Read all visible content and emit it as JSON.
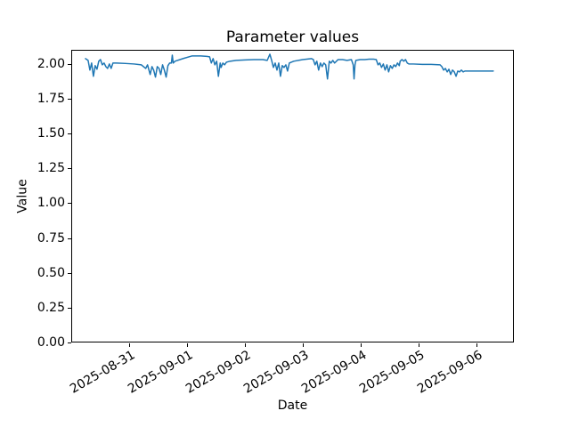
{
  "figure": {
    "background": "#ffffff",
    "frame_color": "#000000"
  },
  "chart_data": {
    "type": "line",
    "title": "Parameter values",
    "xlabel": "Date",
    "ylabel": "Value",
    "grid": false,
    "legend": "none",
    "line_color": "#1f77b4",
    "line_width": 1.5,
    "x_unit": "days since 2025-08-30 00:00",
    "xlim": [
      0,
      7.65
    ],
    "ylim": [
      0,
      2.102
    ],
    "x_ticks": [
      {
        "pos": 1,
        "label": "2025-08-31"
      },
      {
        "pos": 2,
        "label": "2025-09-01"
      },
      {
        "pos": 3,
        "label": "2025-09-02"
      },
      {
        "pos": 4,
        "label": "2025-09-03"
      },
      {
        "pos": 5,
        "label": "2025-09-04"
      },
      {
        "pos": 6,
        "label": "2025-09-05"
      },
      {
        "pos": 7,
        "label": "2025-09-06"
      }
    ],
    "y_ticks": [
      {
        "pos": 0.0,
        "label": "0.00"
      },
      {
        "pos": 0.25,
        "label": "0.25"
      },
      {
        "pos": 0.5,
        "label": "0.50"
      },
      {
        "pos": 0.75,
        "label": "0.75"
      },
      {
        "pos": 1.0,
        "label": "1.00"
      },
      {
        "pos": 1.25,
        "label": "1.25"
      },
      {
        "pos": 1.5,
        "label": "1.50"
      },
      {
        "pos": 1.75,
        "label": "1.75"
      },
      {
        "pos": 2.0,
        "label": "2.00"
      }
    ],
    "series": [
      {
        "name": "Parameter values",
        "x": [
          0.231,
          0.277,
          0.308,
          0.338,
          0.369,
          0.4,
          0.431,
          0.462,
          0.492,
          0.523,
          0.554,
          0.585,
          0.615,
          0.646,
          0.677,
          0.708,
          0.769,
          0.923,
          1.077,
          1.2,
          1.277,
          1.308,
          1.354,
          1.385,
          1.415,
          1.446,
          1.477,
          1.508,
          1.538,
          1.569,
          1.6,
          1.631,
          1.662,
          1.692,
          1.723,
          1.738,
          1.754,
          1.785,
          1.923,
          2.077,
          2.231,
          2.338,
          2.385,
          2.415,
          2.446,
          2.477,
          2.508,
          2.538,
          2.569,
          2.585,
          2.615,
          2.646,
          2.677,
          2.738,
          2.846,
          3.0,
          3.154,
          3.308,
          3.385,
          3.431,
          3.462,
          3.492,
          3.523,
          3.554,
          3.585,
          3.615,
          3.646,
          3.677,
          3.708,
          3.738,
          3.769,
          3.846,
          4.0,
          4.154,
          4.185,
          4.215,
          4.246,
          4.277,
          4.308,
          4.338,
          4.369,
          4.4,
          4.431,
          4.462,
          4.492,
          4.523,
          4.554,
          4.615,
          4.692,
          4.769,
          4.846,
          4.877,
          4.892,
          4.908,
          4.923,
          5.0,
          5.077,
          5.154,
          5.231,
          5.277,
          5.308,
          5.338,
          5.369,
          5.4,
          5.431,
          5.462,
          5.492,
          5.523,
          5.554,
          5.585,
          5.615,
          5.646,
          5.677,
          5.692,
          5.723,
          5.754,
          5.785,
          5.815,
          5.846,
          5.923,
          6.077,
          6.231,
          6.385,
          6.415,
          6.446,
          6.477,
          6.508,
          6.538,
          6.569,
          6.6,
          6.631,
          6.662,
          6.692,
          6.723,
          6.754,
          6.785,
          6.815,
          6.923,
          7.077,
          7.231,
          7.308
        ],
        "y": [
          2.045,
          2.032,
          1.962,
          2.013,
          1.917,
          1.994,
          1.968,
          2.026,
          2.038,
          2.0,
          2.013,
          1.987,
          1.974,
          2.006,
          1.974,
          2.013,
          2.013,
          2.01,
          2.006,
          2.0,
          1.974,
          2.0,
          1.93,
          1.987,
          1.962,
          1.911,
          1.987,
          1.974,
          1.93,
          2.0,
          1.962,
          1.911,
          1.994,
          2.013,
          2.013,
          2.07,
          2.013,
          2.026,
          2.045,
          2.064,
          2.064,
          2.061,
          2.058,
          2.013,
          2.045,
          2.0,
          2.026,
          1.917,
          2.013,
          1.981,
          2.013,
          2.0,
          2.019,
          2.026,
          2.032,
          2.035,
          2.038,
          2.038,
          2.032,
          2.077,
          2.032,
          1.981,
          2.013,
          1.962,
          2.013,
          1.917,
          1.994,
          1.981,
          2.0,
          1.955,
          2.013,
          2.026,
          2.038,
          2.045,
          2.038,
          2.0,
          2.026,
          1.962,
          2.013,
          1.987,
          2.013,
          2.0,
          1.898,
          2.026,
          2.013,
          2.032,
          2.013,
          2.038,
          2.038,
          2.032,
          2.038,
          2.0,
          1.898,
          2.0,
          2.032,
          2.038,
          2.038,
          2.041,
          2.041,
          2.038,
          2.0,
          2.013,
          1.981,
          2.006,
          1.962,
          2.0,
          1.949,
          1.994,
          1.974,
          2.0,
          1.987,
          2.013,
          1.994,
          2.026,
          2.038,
          2.026,
          2.038,
          2.013,
          2.006,
          2.006,
          2.003,
          2.003,
          2.0,
          1.987,
          1.962,
          1.974,
          1.949,
          1.968,
          1.93,
          1.962,
          1.949,
          1.917,
          1.955,
          1.949,
          1.962,
          1.949,
          1.955,
          1.955,
          1.955,
          1.955,
          1.955
        ]
      }
    ]
  }
}
